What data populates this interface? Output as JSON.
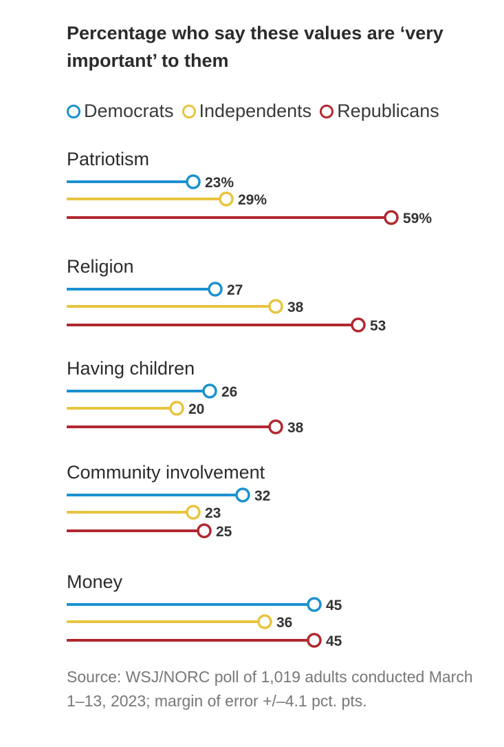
{
  "chart_data": {
    "type": "dot-plot",
    "title": "Percentage who say these values are ‘very important’ to them",
    "legend_placement": "top",
    "grid": false,
    "xlim": [
      0,
      59
    ],
    "series": [
      {
        "name": "Democrats",
        "color": "#1a91d0"
      },
      {
        "name": "Independents",
        "color": "#e8c43f"
      },
      {
        "name": "Republicans",
        "color": "#b0282f"
      }
    ],
    "categories": [
      {
        "label": "Patriotism",
        "values": [
          23,
          29,
          59
        ],
        "value_labels": [
          "23%",
          "29%",
          "59%"
        ]
      },
      {
        "label": "Religion",
        "values": [
          27,
          38,
          53
        ],
        "value_labels": [
          "27",
          "38",
          "53"
        ]
      },
      {
        "label": "Having children",
        "values": [
          26,
          20,
          38
        ],
        "value_labels": [
          "26",
          "20",
          "38"
        ]
      },
      {
        "label": "Community involvement",
        "values": [
          32,
          23,
          25
        ],
        "value_labels": [
          "32",
          "23",
          "25"
        ]
      },
      {
        "label": "Money",
        "values": [
          45,
          36,
          45
        ],
        "value_labels": [
          "45",
          "36",
          "45"
        ]
      }
    ],
    "source": "Source: WSJ/NORC poll of 1,019 adults conducted March 1–13, 2023; margin of error +/–4.1 pct. pts."
  }
}
